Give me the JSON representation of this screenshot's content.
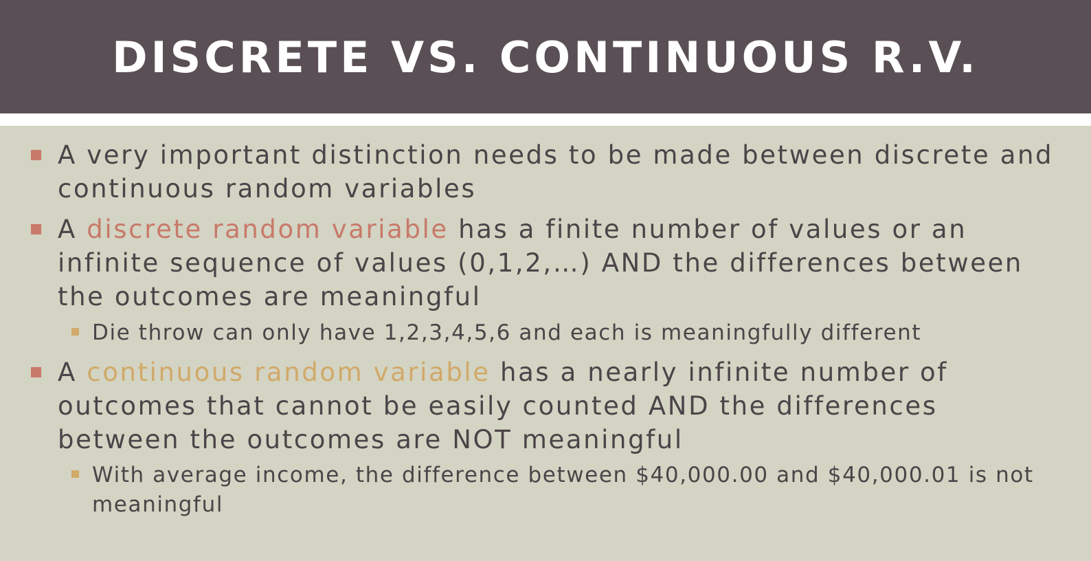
{
  "slide": {
    "title": "DISCRETE VS. CONTINUOUS R.V.",
    "bullets": [
      {
        "text": "A very important distinction needs to be made between discrete and continuous random variables"
      },
      {
        "prefix": "A ",
        "highlight": "discrete random variable",
        "suffix": " has a finite number of values or an infinite sequence of values (0,1,2,…) AND the differences between the outcomes are meaningful",
        "sub": "Die throw can only have 1,2,3,4,5,6 and each is meaningfully different"
      },
      {
        "prefix": "A ",
        "highlight": "continuous random variable",
        "suffix": " has a nearly infinite number of outcomes that cannot be easily counted AND the differences between the outcomes are NOT meaningful",
        "sub": "With average income, the difference between $40,000.00 and $40,000.01 is not meaningful"
      }
    ],
    "colors": {
      "title_bar": "#594f54",
      "background": "#d3d4c3",
      "text": "#4b4448",
      "discrete_highlight": "#c8796a",
      "continuous_highlight": "#d1a969",
      "bullet_marker": "#c9796a",
      "sub_bullet_marker": "#d1a969"
    }
  }
}
